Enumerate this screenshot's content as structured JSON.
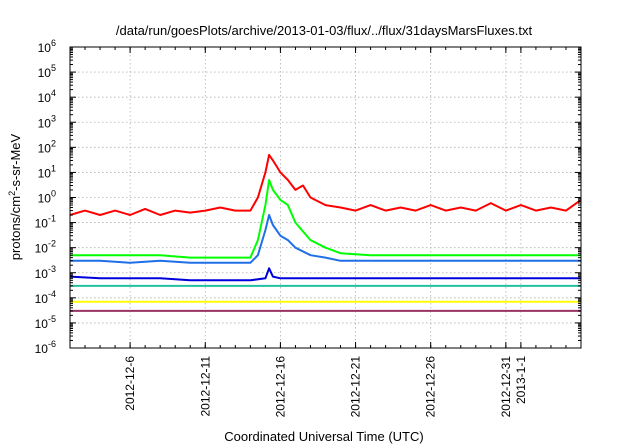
{
  "chart_data": {
    "type": "line",
    "title": "/data/run/goesPlots/archive/2013-01-03/flux/../flux/31daysMarsFluxes.txt",
    "xlabel": "Coordinated Universal Time (UTC)",
    "ylabel_base": "protons/cm",
    "ylabel_sup": "2",
    "ylabel_rest": "-s-sr-MeV",
    "yscale": "log",
    "ylim": [
      1e-06,
      1000000.0
    ],
    "xlim": [
      "2012-12-02",
      "2013-01-05"
    ],
    "grid": true,
    "x_ticks": [
      {
        "date": "2012-12-06",
        "label": "2012-12-6"
      },
      {
        "date": "2012-12-11",
        "label": "2012-12-11"
      },
      {
        "date": "2012-12-16",
        "label": "2012-12-16"
      },
      {
        "date": "2012-12-21",
        "label": "2012-12-21"
      },
      {
        "date": "2012-12-26",
        "label": "2012-12-26"
      },
      {
        "date": "2012-12-31",
        "label": "2012-12-31"
      },
      {
        "date": "2013-01-01",
        "label": "2013-1-1"
      }
    ],
    "y_ticks": [
      {
        "value": 1e-06,
        "base": "10",
        "exp": "-6"
      },
      {
        "value": 1e-05,
        "base": "10",
        "exp": "-5"
      },
      {
        "value": 0.0001,
        "base": "10",
        "exp": "-4"
      },
      {
        "value": 0.001,
        "base": "10",
        "exp": "-3"
      },
      {
        "value": 0.01,
        "base": "10",
        "exp": "-2"
      },
      {
        "value": 0.1,
        "base": "10",
        "exp": "-1"
      },
      {
        "value": 1.0,
        "base": "10",
        "exp": "0"
      },
      {
        "value": 10.0,
        "base": "10",
        "exp": "1"
      },
      {
        "value": 100.0,
        "base": "10",
        "exp": "2"
      },
      {
        "value": 1000.0,
        "base": "10",
        "exp": "3"
      },
      {
        "value": 10000.0,
        "base": "10",
        "exp": "4"
      },
      {
        "value": 100000.0,
        "base": "10",
        "exp": "5"
      },
      {
        "value": 1000000.0,
        "base": "10",
        "exp": "6"
      }
    ],
    "series": [
      {
        "color": "#ff0000",
        "x": [
          "2012-12-02",
          "2012-12-03",
          "2012-12-04",
          "2012-12-05",
          "2012-12-06",
          "2012-12-07",
          "2012-12-08",
          "2012-12-09",
          "2012-12-10",
          "2012-12-11",
          "2012-12-12",
          "2012-12-13",
          "2012-12-14",
          "2012-12-14T12:00",
          "2012-12-15",
          "2012-12-15T06:00",
          "2012-12-15T12:00",
          "2012-12-16",
          "2012-12-16T12:00",
          "2012-12-17",
          "2012-12-17T12:00",
          "2012-12-18",
          "2012-12-19",
          "2012-12-20",
          "2012-12-21",
          "2012-12-22",
          "2012-12-23",
          "2012-12-24",
          "2012-12-25",
          "2012-12-26",
          "2012-12-27",
          "2012-12-28",
          "2012-12-29",
          "2012-12-30",
          "2012-12-31",
          "2013-01-01",
          "2013-01-02",
          "2013-01-03",
          "2013-01-04",
          "2013-01-05"
        ],
        "y": [
          0.2,
          0.3,
          0.2,
          0.3,
          0.2,
          0.35,
          0.2,
          0.3,
          0.25,
          0.3,
          0.4,
          0.3,
          0.3,
          1.0,
          10,
          50,
          30,
          10,
          5,
          2,
          3,
          1,
          0.5,
          0.4,
          0.3,
          0.5,
          0.3,
          0.4,
          0.3,
          0.5,
          0.3,
          0.4,
          0.3,
          0.6,
          0.3,
          0.5,
          0.3,
          0.4,
          0.3,
          0.8
        ]
      },
      {
        "color": "#00ff00",
        "x": [
          "2012-12-02",
          "2012-12-04",
          "2012-12-06",
          "2012-12-08",
          "2012-12-10",
          "2012-12-12",
          "2012-12-14",
          "2012-12-14T12:00",
          "2012-12-15",
          "2012-12-15T06:00",
          "2012-12-15T12:00",
          "2012-12-16",
          "2012-12-16T12:00",
          "2012-12-17",
          "2012-12-18",
          "2012-12-19",
          "2012-12-20",
          "2012-12-22",
          "2012-12-24",
          "2012-12-26",
          "2012-12-28",
          "2012-12-30",
          "2013-01-01",
          "2013-01-03",
          "2013-01-05"
        ],
        "y": [
          0.005,
          0.005,
          0.005,
          0.005,
          0.004,
          0.004,
          0.004,
          0.02,
          0.5,
          5,
          2,
          0.8,
          0.5,
          0.1,
          0.02,
          0.01,
          0.006,
          0.005,
          0.005,
          0.005,
          0.005,
          0.005,
          0.005,
          0.005,
          0.005
        ]
      },
      {
        "color": "#1e6fe8",
        "x": [
          "2012-12-02",
          "2012-12-04",
          "2012-12-06",
          "2012-12-08",
          "2012-12-10",
          "2012-12-12",
          "2012-12-14",
          "2012-12-14T12:00",
          "2012-12-15",
          "2012-12-15T06:00",
          "2012-12-15T12:00",
          "2012-12-16",
          "2012-12-16T12:00",
          "2012-12-17",
          "2012-12-18",
          "2012-12-19",
          "2012-12-20",
          "2012-12-22",
          "2012-12-24",
          "2012-12-26",
          "2012-12-28",
          "2012-12-30",
          "2013-01-01",
          "2013-01-03",
          "2013-01-05"
        ],
        "y": [
          0.003,
          0.003,
          0.0025,
          0.003,
          0.0025,
          0.0025,
          0.0025,
          0.005,
          0.05,
          0.2,
          0.08,
          0.03,
          0.02,
          0.01,
          0.005,
          0.004,
          0.003,
          0.003,
          0.003,
          0.003,
          0.003,
          0.003,
          0.003,
          0.003,
          0.003
        ]
      },
      {
        "color": "#0000dd",
        "x": [
          "2012-12-02",
          "2012-12-04",
          "2012-12-06",
          "2012-12-08",
          "2012-12-10",
          "2012-12-12",
          "2012-12-14",
          "2012-12-15",
          "2012-12-15T06:00",
          "2012-12-15T12:00",
          "2012-12-16",
          "2012-12-18",
          "2012-12-20",
          "2012-12-22",
          "2012-12-24",
          "2012-12-26",
          "2012-12-28",
          "2012-12-30",
          "2013-01-01",
          "2013-01-03",
          "2013-01-05"
        ],
        "y": [
          0.0007,
          0.0006,
          0.0006,
          0.0006,
          0.0005,
          0.0005,
          0.0005,
          0.0006,
          0.0015,
          0.0007,
          0.0006,
          0.0006,
          0.0006,
          0.0006,
          0.0006,
          0.0006,
          0.0006,
          0.0006,
          0.0006,
          0.0006,
          0.0006
        ]
      },
      {
        "color": "#20c0a0",
        "x": [
          "2012-12-02",
          "2012-12-05",
          "2012-12-08",
          "2012-12-11",
          "2012-12-14",
          "2012-12-17",
          "2012-12-20",
          "2012-12-23",
          "2012-12-26",
          "2012-12-29",
          "2013-01-01",
          "2013-01-05"
        ],
        "y": [
          0.0003,
          0.0003,
          0.0003,
          0.0003,
          0.0003,
          0.0003,
          0.0003,
          0.0003,
          0.0003,
          0.0003,
          0.0003,
          0.0003
        ]
      },
      {
        "color": "#ffff00",
        "x": [
          "2012-12-02",
          "2012-12-05",
          "2012-12-08",
          "2012-12-11",
          "2012-12-14",
          "2012-12-17",
          "2012-12-20",
          "2012-12-23",
          "2012-12-26",
          "2012-12-29",
          "2013-01-01",
          "2013-01-05"
        ],
        "y": [
          7e-05,
          7e-05,
          7e-05,
          7e-05,
          7e-05,
          7e-05,
          7e-05,
          7e-05,
          7e-05,
          7e-05,
          7e-05,
          7e-05
        ]
      },
      {
        "color": "#993366",
        "x": [
          "2012-12-02",
          "2012-12-05",
          "2012-12-08",
          "2012-12-11",
          "2012-12-14",
          "2012-12-17",
          "2012-12-20",
          "2012-12-23",
          "2012-12-26",
          "2012-12-29",
          "2013-01-01",
          "2013-01-05"
        ],
        "y": [
          3e-05,
          3e-05,
          3e-05,
          3e-05,
          3e-05,
          3e-05,
          3e-05,
          3e-05,
          3e-05,
          3e-05,
          3e-05,
          3e-05
        ]
      }
    ]
  }
}
